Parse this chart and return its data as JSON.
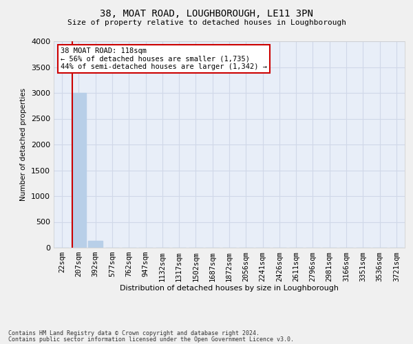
{
  "title1": "38, MOAT ROAD, LOUGHBOROUGH, LE11 3PN",
  "title2": "Size of property relative to detached houses in Loughborough",
  "xlabel": "Distribution of detached houses by size in Loughborough",
  "ylabel": "Number of detached properties",
  "categories": [
    "22sqm",
    "207sqm",
    "392sqm",
    "577sqm",
    "762sqm",
    "947sqm",
    "1132sqm",
    "1317sqm",
    "1502sqm",
    "1687sqm",
    "1872sqm",
    "2056sqm",
    "2241sqm",
    "2426sqm",
    "2611sqm",
    "2796sqm",
    "2981sqm",
    "3166sqm",
    "3351sqm",
    "3536sqm",
    "3721sqm"
  ],
  "values": [
    0,
    3000,
    130,
    0,
    0,
    0,
    0,
    0,
    0,
    0,
    0,
    0,
    0,
    0,
    0,
    0,
    0,
    0,
    0,
    0,
    0
  ],
  "bar_color": "#b8cfe8",
  "vline_color": "#cc0000",
  "vline_position": 0.62,
  "ylim": [
    0,
    4000
  ],
  "yticks": [
    0,
    500,
    1000,
    1500,
    2000,
    2500,
    3000,
    3500,
    4000
  ],
  "annotation_title": "38 MOAT ROAD: 118sqm",
  "annotation_line1": "← 56% of detached houses are smaller (1,735)",
  "annotation_line2": "44% of semi-detached houses are larger (1,342) →",
  "annotation_box_color": "#ffffff",
  "annotation_box_edge_color": "#cc0000",
  "grid_color": "#d0d8e8",
  "bg_color": "#e8eef8",
  "footer1": "Contains HM Land Registry data © Crown copyright and database right 2024.",
  "footer2": "Contains public sector information licensed under the Open Government Licence v3.0."
}
